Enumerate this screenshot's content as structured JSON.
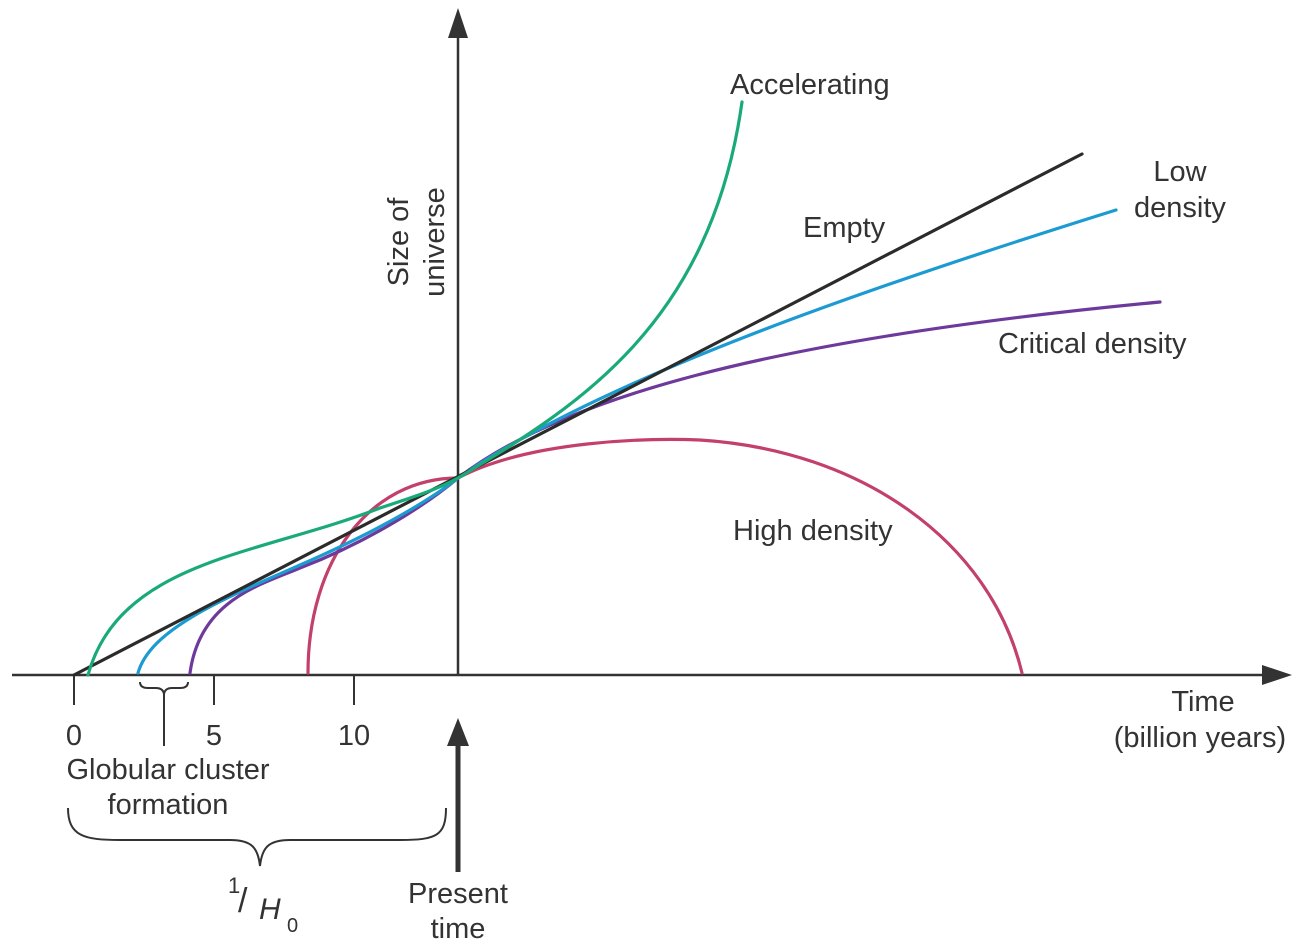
{
  "diagram": {
    "y_axis_label": [
      "Size of",
      "universe"
    ],
    "x_axis_label": [
      "Time",
      "(billion years)"
    ],
    "ticks": [
      "0",
      "5",
      "10"
    ],
    "curves": [
      {
        "key": "accelerating",
        "label": "Accelerating",
        "color": "#1aaa7a"
      },
      {
        "key": "empty",
        "label": "Empty",
        "color": "#2b2b2b"
      },
      {
        "key": "low_density",
        "label": [
          "Low",
          "density"
        ],
        "color": "#1b9bd1"
      },
      {
        "key": "critical_density",
        "label": "Critical density",
        "color": "#6d3a9c"
      },
      {
        "key": "high_density",
        "label": "High density",
        "color": "#c2406a"
      }
    ],
    "globular_cluster_label": [
      "Globular cluster",
      "formation"
    ],
    "hubble_time": {
      "numerator": "1",
      "slash": "/",
      "symbol": "H",
      "subscript": "0"
    },
    "present_time_label": [
      "Present",
      "time"
    ]
  }
}
